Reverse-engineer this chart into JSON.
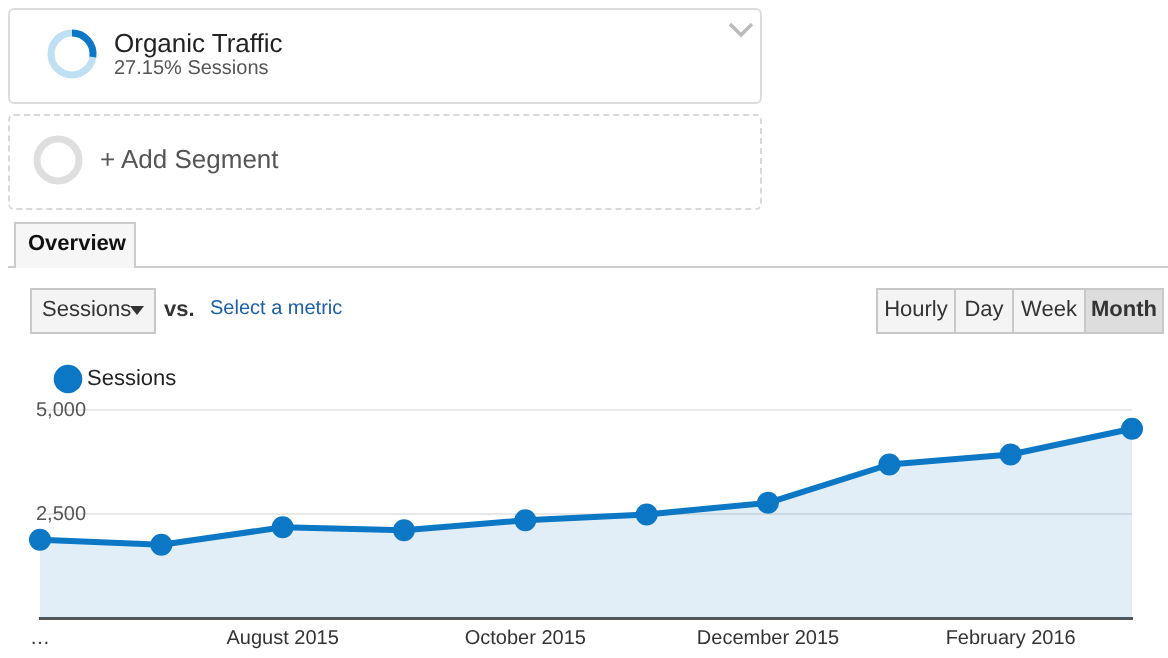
{
  "chart_data": {
    "type": "area",
    "categories": [
      "…",
      null,
      "August 2015",
      null,
      "October 2015",
      null,
      "December 2015",
      null,
      "February 2016",
      null
    ],
    "series": [
      {
        "name": "Sessions",
        "color": "#0b77c5",
        "values": [
          1880,
          1760,
          2180,
          2110,
          2350,
          2490,
          2770,
          3690,
          3930,
          4550
        ]
      }
    ],
    "ylim": [
      0,
      5000
    ],
    "yticks": [
      {
        "value": 0,
        "label": null
      },
      {
        "value": 2500,
        "label": "2,500"
      },
      {
        "value": 5000,
        "label": "5,000"
      }
    ],
    "grid": "y",
    "legend": "top left",
    "marker": "circle",
    "line_style": "solid",
    "annotations": [
      "Organic Traffic",
      "27.15% Sessions",
      "+ Add Segment",
      "Overview",
      "Sessions",
      "vs.",
      "Select a metric",
      "Hourly",
      "Day",
      "Week",
      "Month"
    ]
  }
}
